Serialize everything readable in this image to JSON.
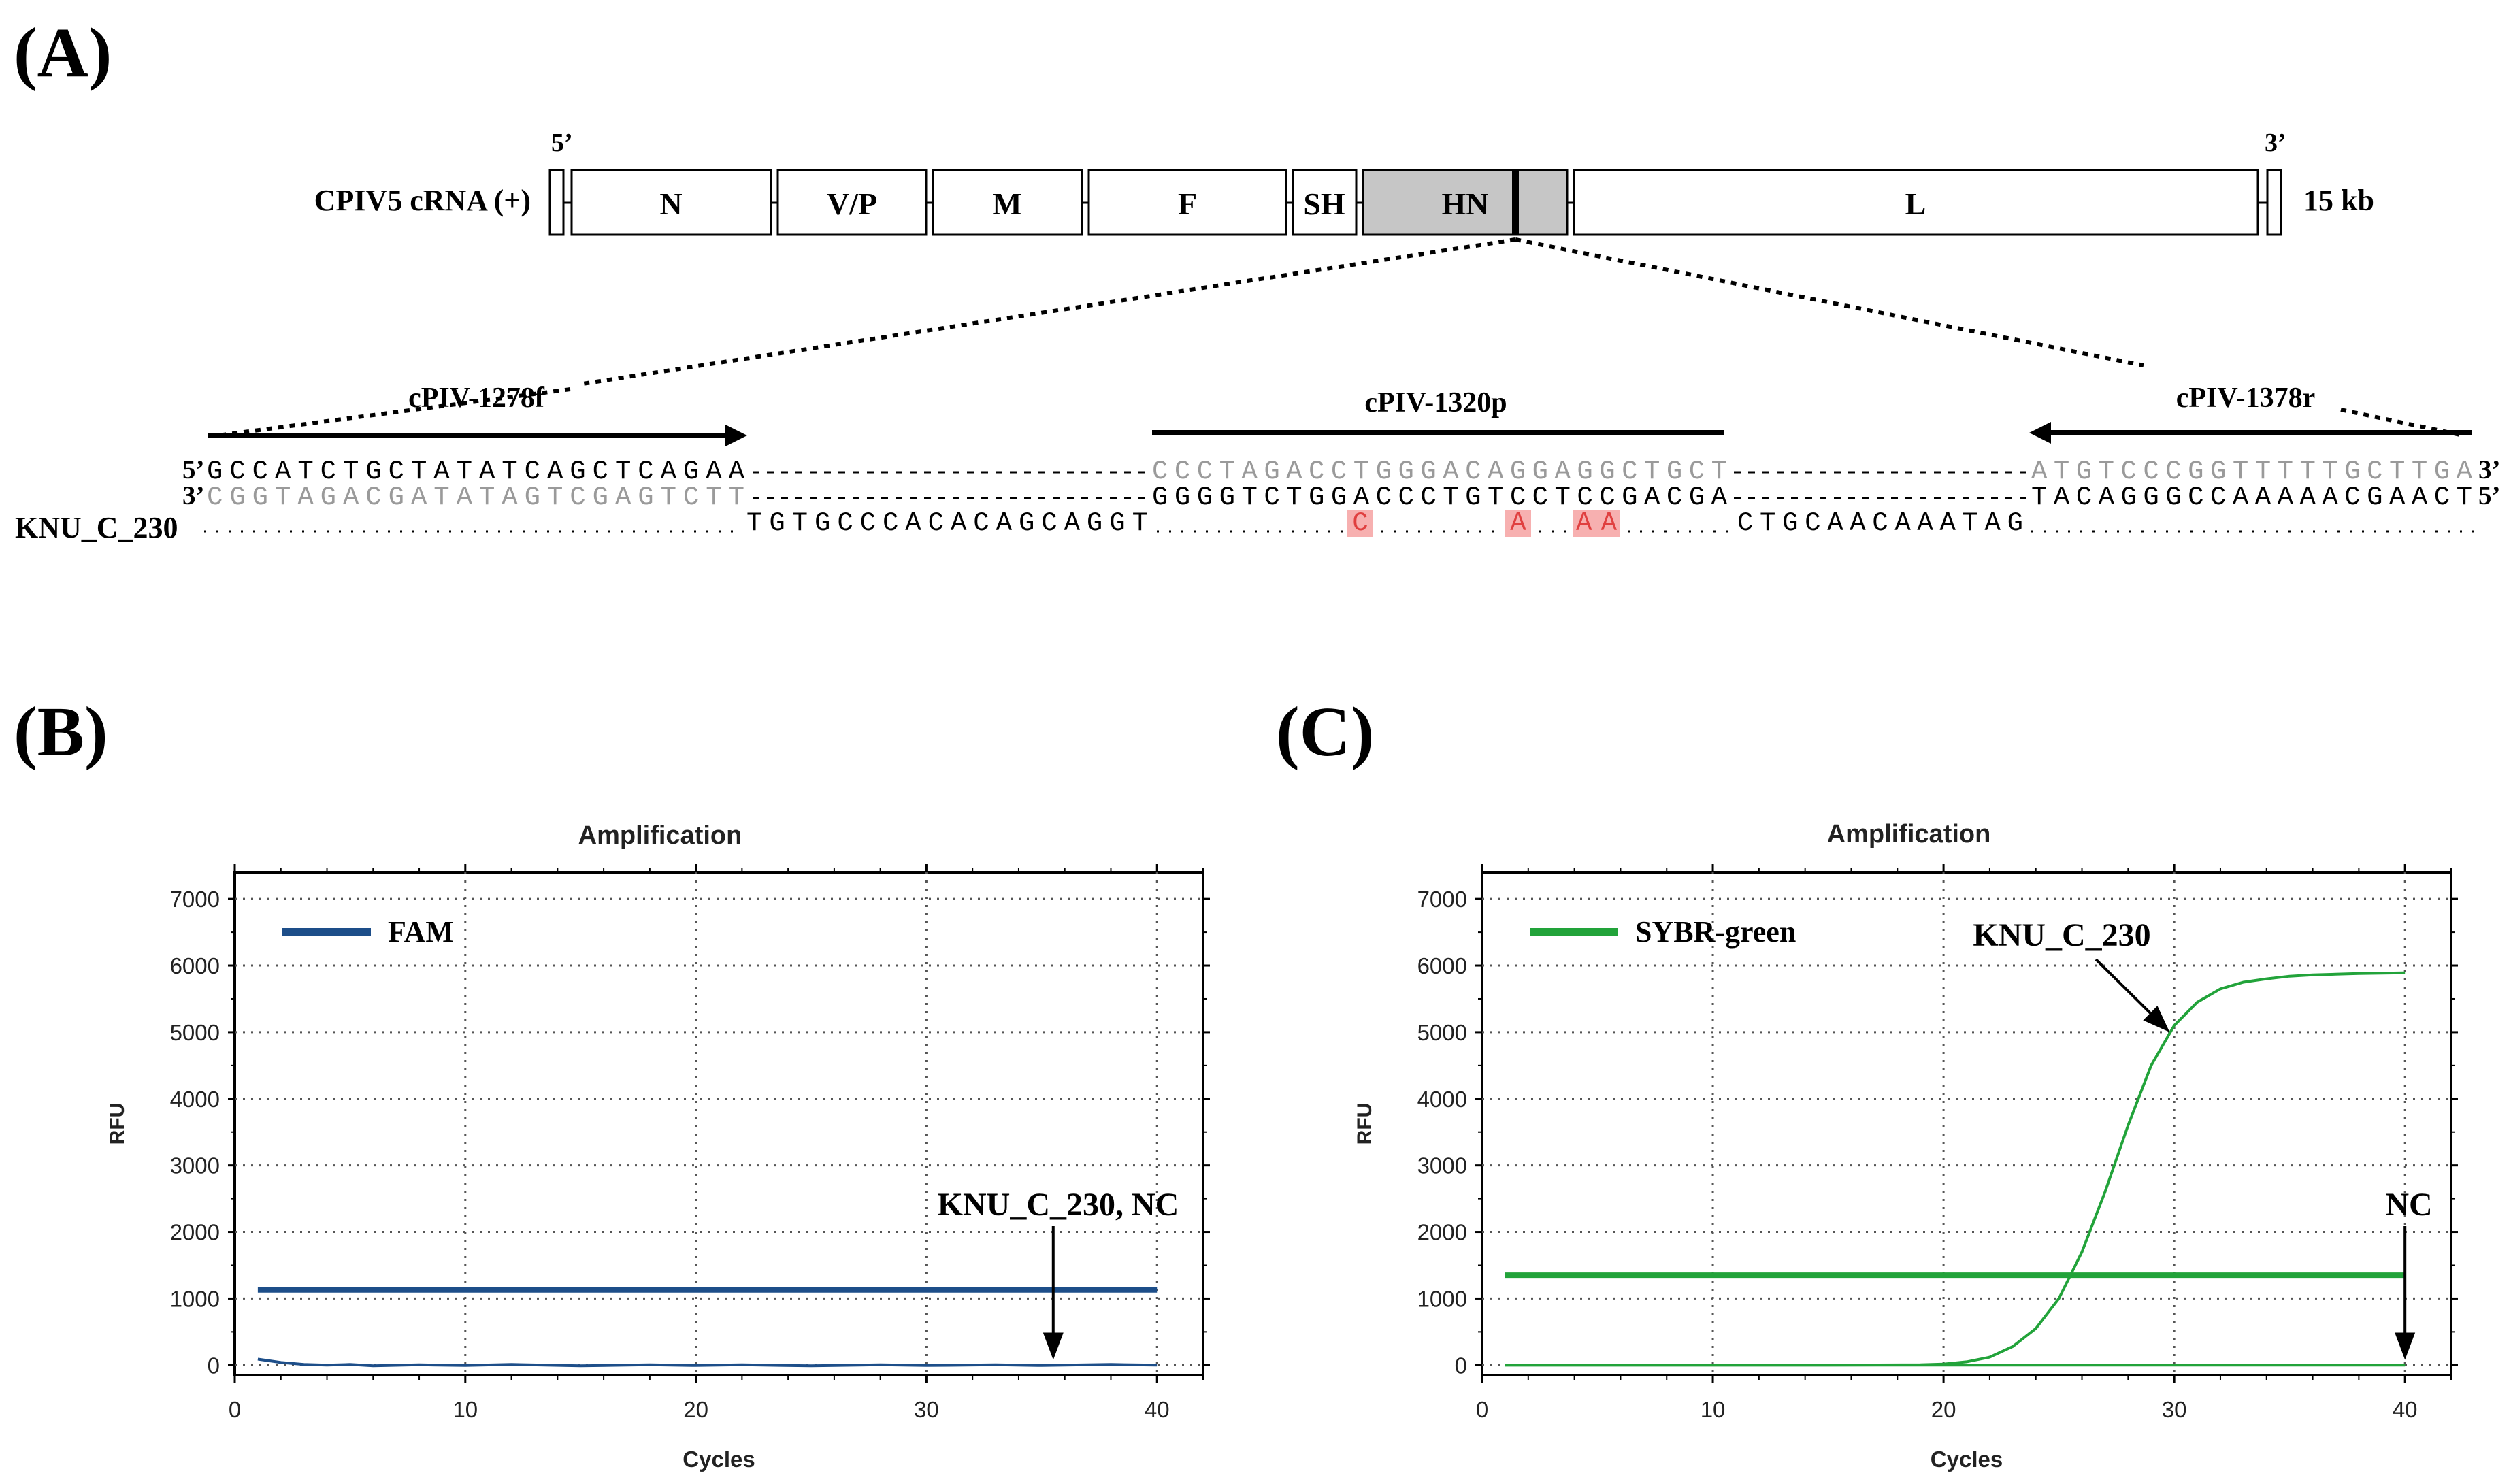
{
  "panels": {
    "a": "(A)",
    "b": "(B)",
    "c": "(C)"
  },
  "genome": {
    "label": "CPIV5 cRNA (+)",
    "end5": "5’",
    "end3": "3’",
    "size": "15 kb",
    "genes": [
      "N",
      "V/P",
      "M",
      "F",
      "SH",
      "HN",
      "L"
    ],
    "hn_color": "#c6c6c6"
  },
  "primers": {
    "forward": "cPIV-1278f",
    "probe": "cPIV-1320p",
    "reverse": "cPIV-1378r"
  },
  "alignment": {
    "top": {
      "prefix": "5’",
      "suffix": "3’",
      "fwd": "GCCATCTGCTATATCAGCTCAGAA",
      "probe": "CCCTAGACCTGGGACAGGAGGCTGCT",
      "rev": "ATGTCCCGGTTTTTGCTTGA"
    },
    "bottom": {
      "prefix": "3’",
      "suffix": "5’",
      "fwd": "CGGTAGACGATATAGTCGAGTCTT",
      "probe": "GGGGTCTGGACCCTGTCCTCCGACGA",
      "rev": "TACAGGGCCAAAAACGAACT"
    },
    "sample": {
      "label": "KNU_C_230",
      "seq1": "TGTGCCCACACAGCAGGT",
      "mut1": "C",
      "mut2": "A",
      "mut3": "AA",
      "seq2": "CTGCAACAAATAG"
    },
    "mismatch_color": "#f7b0b0",
    "grey_text": "#9a9a9a"
  },
  "chart_data": [
    {
      "type": "line",
      "title": "Amplification",
      "xlabel": "Cycles",
      "ylabel": "RFU",
      "xlim": [
        0,
        42
      ],
      "ylim": [
        -150,
        7400
      ],
      "xticks": [
        0,
        10,
        20,
        30,
        40
      ],
      "yticks": [
        0,
        1000,
        2000,
        3000,
        4000,
        5000,
        6000,
        7000
      ],
      "grid": true,
      "legend": "FAM",
      "legend_position": "top-left",
      "color": "#1d4e89",
      "threshold": 1130,
      "threshold_range": [
        1,
        40
      ],
      "series": [
        {
          "name": "KNU_C_230, NC",
          "x": [
            1,
            2,
            3,
            4,
            5,
            6,
            8,
            10,
            12,
            15,
            18,
            20,
            22,
            25,
            28,
            30,
            33,
            35,
            38,
            40
          ],
          "values": [
            90,
            40,
            10,
            0,
            10,
            -10,
            5,
            -5,
            10,
            -10,
            5,
            -5,
            5,
            -10,
            5,
            -5,
            5,
            -5,
            10,
            0
          ]
        }
      ],
      "annotation": "KNU_C_230, NC",
      "arrow_at": [
        35.5,
        80
      ]
    },
    {
      "type": "line",
      "title": "Amplification",
      "xlabel": "Cycles",
      "ylabel": "RFU",
      "xlim": [
        0,
        42
      ],
      "ylim": [
        -150,
        7400
      ],
      "xticks": [
        0,
        10,
        20,
        30,
        40
      ],
      "yticks": [
        0,
        1000,
        2000,
        3000,
        4000,
        5000,
        6000,
        7000
      ],
      "grid": true,
      "legend": "SYBR-green",
      "legend_position": "top-left",
      "color": "#22a33a",
      "threshold": 1350,
      "threshold_range": [
        1,
        40
      ],
      "series": [
        {
          "name": "KNU_C_230",
          "x": [
            1,
            5,
            10,
            15,
            19,
            20,
            21,
            22,
            23,
            24,
            25,
            26,
            27,
            28,
            29,
            30,
            31,
            32,
            33,
            34,
            35,
            36,
            37,
            38,
            39,
            40
          ],
          "values": [
            0,
            0,
            0,
            0,
            5,
            15,
            50,
            120,
            280,
            550,
            1000,
            1700,
            2600,
            3600,
            4500,
            5100,
            5450,
            5650,
            5750,
            5800,
            5840,
            5860,
            5870,
            5880,
            5885,
            5890
          ]
        },
        {
          "name": "NC",
          "x": [
            1,
            10,
            20,
            30,
            40
          ],
          "values": [
            0,
            0,
            0,
            0,
            0
          ]
        }
      ],
      "annotations": [
        "KNU_C_230",
        "NC"
      ],
      "arrow_at": [
        [
          29.8,
          5000
        ],
        [
          40,
          80
        ]
      ]
    }
  ]
}
